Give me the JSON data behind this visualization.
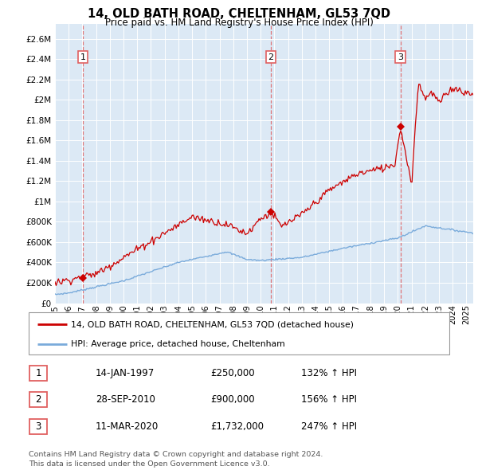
{
  "title": "14, OLD BATH ROAD, CHELTENHAM, GL53 7QD",
  "subtitle": "Price paid vs. HM Land Registry's House Price Index (HPI)",
  "ylim": [
    0,
    2750000
  ],
  "xlim_start": 1995,
  "xlim_end": 2025.5,
  "plot_bg_color": "#dce9f5",
  "grid_color": "#ffffff",
  "sale_dates": [
    1997.04,
    2010.74,
    2020.19
  ],
  "sale_prices": [
    250000,
    900000,
    1732000
  ],
  "sale_labels": [
    "1",
    "2",
    "3"
  ],
  "legend_label_red": "14, OLD BATH ROAD, CHELTENHAM, GL53 7QD (detached house)",
  "legend_label_blue": "HPI: Average price, detached house, Cheltenham",
  "table_data": [
    [
      "1",
      "14-JAN-1997",
      "£250,000",
      "132% ↑ HPI"
    ],
    [
      "2",
      "28-SEP-2010",
      "£900,000",
      "156% ↑ HPI"
    ],
    [
      "3",
      "11-MAR-2020",
      "£1,732,000",
      "247% ↑ HPI"
    ]
  ],
  "footer": "Contains HM Land Registry data © Crown copyright and database right 2024.\nThis data is licensed under the Open Government Licence v3.0.",
  "red_color": "#cc0000",
  "blue_color": "#7aabdb",
  "dashed_red": "#e06060"
}
